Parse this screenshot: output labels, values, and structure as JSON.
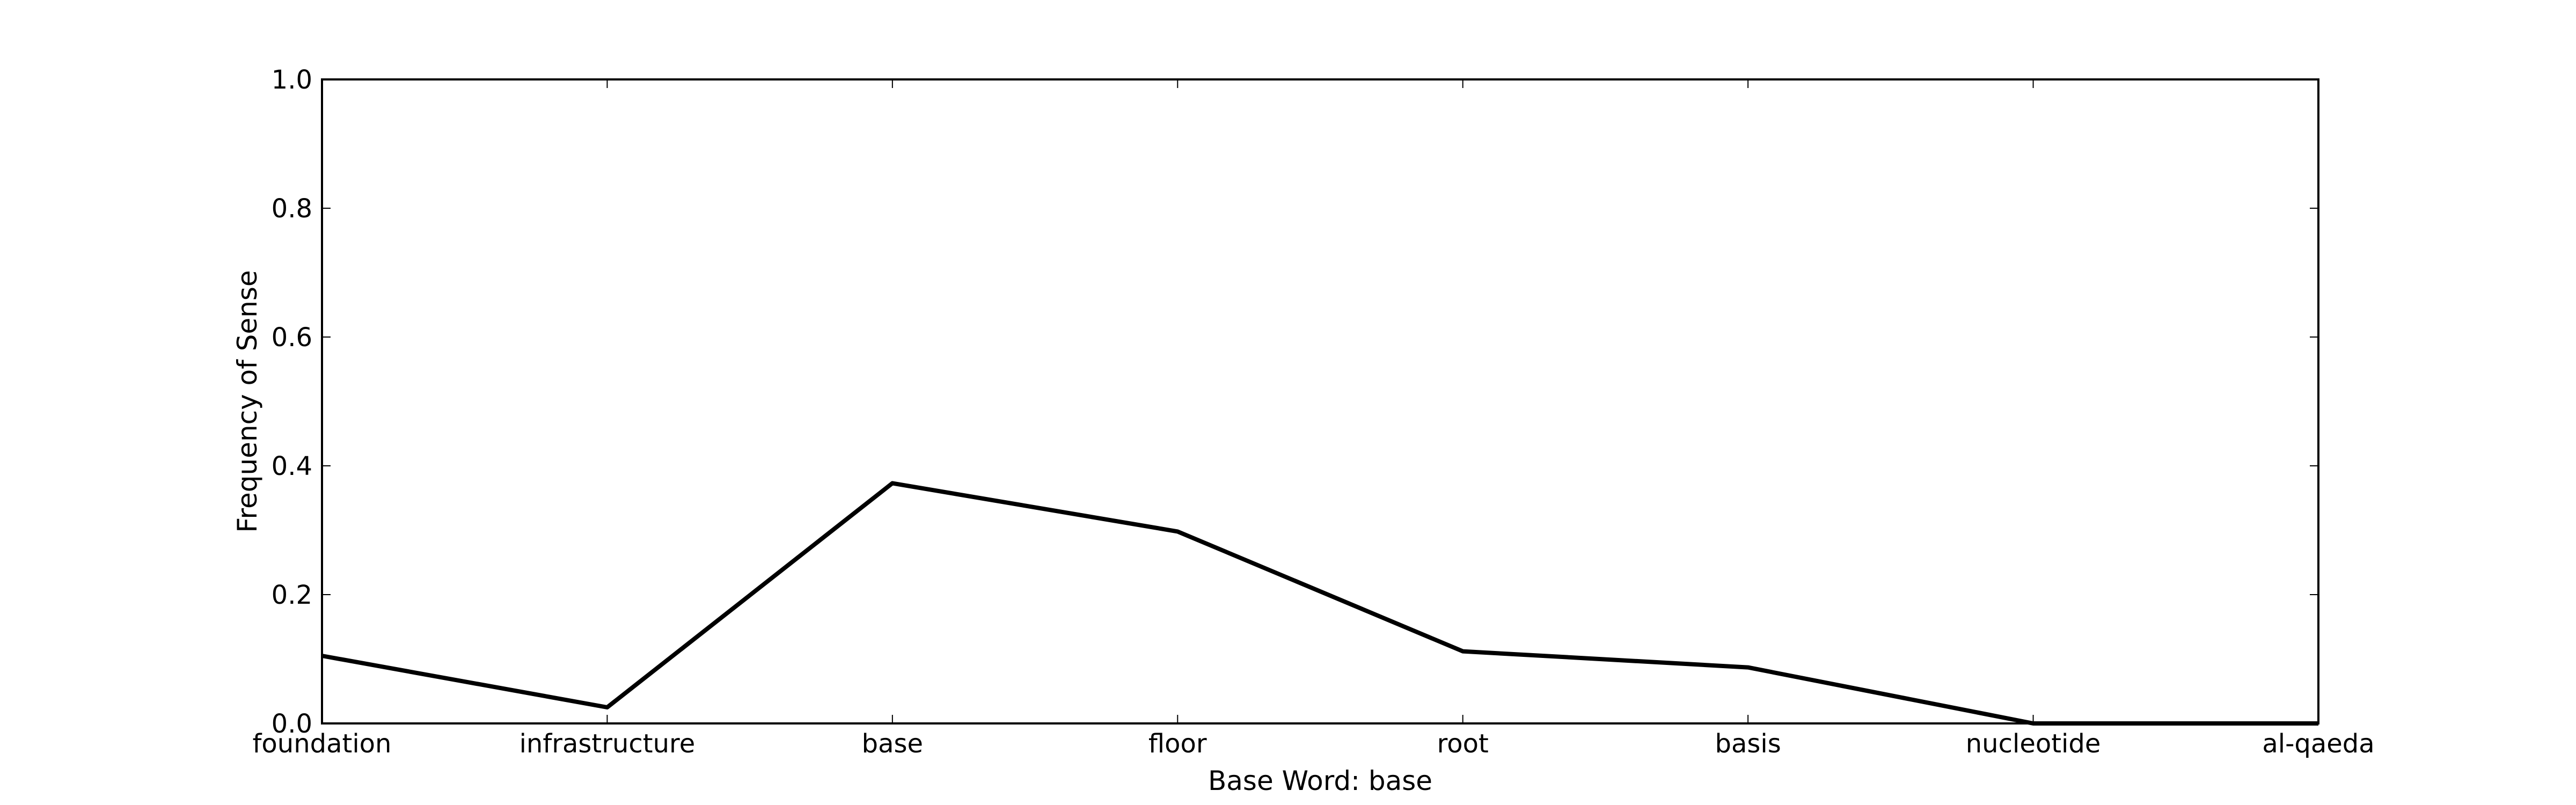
{
  "chart_data": {
    "type": "line",
    "title": "",
    "xlabel": "Base Word: base",
    "ylabel": "Frequency of Sense",
    "categories": [
      "foundation",
      "infrastructure",
      "base",
      "floor",
      "root",
      "basis",
      "nucleotide",
      "al-qaeda"
    ],
    "series": [
      {
        "values": [
          0.105,
          0.025,
          0.373,
          0.298,
          0.112,
          0.087,
          0.0,
          0.0
        ]
      }
    ],
    "ylim": [
      0.0,
      1.0
    ],
    "yticks": [
      "0.0",
      "0.2",
      "0.4",
      "0.6",
      "0.8",
      "1.0"
    ],
    "grid": false,
    "legend": "none",
    "colors": {
      "line": "#000000",
      "axes": "#000000",
      "background": "#ffffff"
    }
  }
}
